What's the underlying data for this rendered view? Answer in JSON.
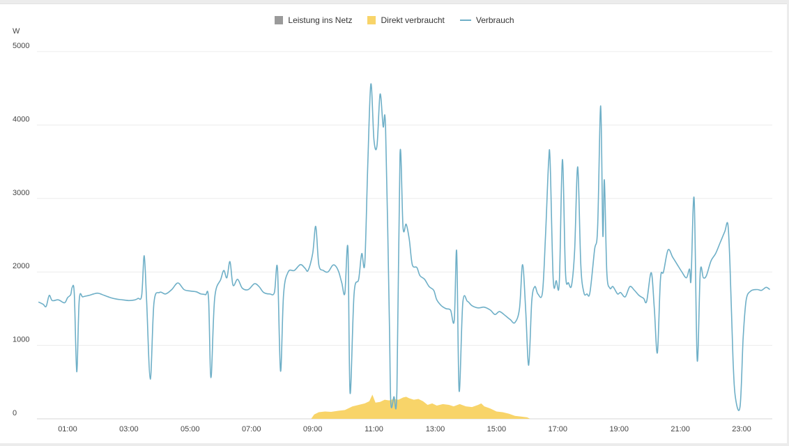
{
  "legend": [
    {
      "label": "Leistung ins Netz",
      "color": "#9a9a9a",
      "kind": "box"
    },
    {
      "label": "Direkt verbraucht",
      "color": "#f8d469",
      "kind": "box"
    },
    {
      "label": "Verbrauch",
      "color": "#6eafc7",
      "kind": "line"
    }
  ],
  "chart_data": {
    "type": "line",
    "ylabel": "W",
    "ylim": [
      0,
      5000
    ],
    "yticks": [
      0,
      1000,
      2000,
      3000,
      4000,
      5000
    ],
    "xlim": [
      0,
      24
    ],
    "xticks": [
      {
        "t": 1,
        "label": "01:00"
      },
      {
        "t": 3,
        "label": "03:00"
      },
      {
        "t": 5,
        "label": "05:00"
      },
      {
        "t": 7,
        "label": "07:00"
      },
      {
        "t": 9,
        "label": "09:00"
      },
      {
        "t": 11,
        "label": "11:00"
      },
      {
        "t": 13,
        "label": "13:00"
      },
      {
        "t": 15,
        "label": "15:00"
      },
      {
        "t": 17,
        "label": "17:00"
      },
      {
        "t": 19,
        "label": "19:00"
      },
      {
        "t": 21,
        "label": "21:00"
      },
      {
        "t": 23,
        "label": "23:00"
      }
    ],
    "grid": true,
    "legend_position": "top-center",
    "series": [
      {
        "name": "Verbrauch",
        "kind": "line",
        "color": "#6eafc7",
        "points": [
          [
            0.05,
            1590
          ],
          [
            0.2,
            1560
          ],
          [
            0.3,
            1530
          ],
          [
            0.4,
            1680
          ],
          [
            0.5,
            1610
          ],
          [
            0.7,
            1620
          ],
          [
            0.9,
            1580
          ],
          [
            1.0,
            1650
          ],
          [
            1.1,
            1690
          ],
          [
            1.15,
            1790
          ],
          [
            1.22,
            1700
          ],
          [
            1.3,
            640
          ],
          [
            1.38,
            1620
          ],
          [
            1.5,
            1660
          ],
          [
            1.7,
            1680
          ],
          [
            1.85,
            1700
          ],
          [
            2.0,
            1710
          ],
          [
            2.2,
            1680
          ],
          [
            2.4,
            1650
          ],
          [
            2.6,
            1630
          ],
          [
            2.8,
            1620
          ],
          [
            3.0,
            1610
          ],
          [
            3.2,
            1620
          ],
          [
            3.3,
            1640
          ],
          [
            3.42,
            1680
          ],
          [
            3.5,
            2220
          ],
          [
            3.58,
            1600
          ],
          [
            3.7,
            540
          ],
          [
            3.82,
            1580
          ],
          [
            4.0,
            1720
          ],
          [
            4.2,
            1700
          ],
          [
            4.4,
            1760
          ],
          [
            4.6,
            1850
          ],
          [
            4.8,
            1760
          ],
          [
            5.0,
            1740
          ],
          [
            5.2,
            1730
          ],
          [
            5.35,
            1700
          ],
          [
            5.5,
            1690
          ],
          [
            5.6,
            1640
          ],
          [
            5.68,
            560
          ],
          [
            5.8,
            1640
          ],
          [
            6.0,
            1900
          ],
          [
            6.1,
            2020
          ],
          [
            6.2,
            1920
          ],
          [
            6.3,
            2140
          ],
          [
            6.4,
            1820
          ],
          [
            6.55,
            1900
          ],
          [
            6.7,
            1780
          ],
          [
            6.9,
            1760
          ],
          [
            7.1,
            1840
          ],
          [
            7.25,
            1800
          ],
          [
            7.4,
            1720
          ],
          [
            7.6,
            1700
          ],
          [
            7.75,
            1720
          ],
          [
            7.85,
            2050
          ],
          [
            7.95,
            650
          ],
          [
            8.05,
            1700
          ],
          [
            8.2,
            2000
          ],
          [
            8.4,
            2020
          ],
          [
            8.6,
            2100
          ],
          [
            8.75,
            2050
          ],
          [
            8.85,
            2020
          ],
          [
            9.0,
            2250
          ],
          [
            9.1,
            2620
          ],
          [
            9.2,
            2100
          ],
          [
            9.35,
            2020
          ],
          [
            9.5,
            2000
          ],
          [
            9.65,
            2090
          ],
          [
            9.75,
            2080
          ],
          [
            9.85,
            2000
          ],
          [
            9.95,
            1850
          ],
          [
            10.05,
            1710
          ],
          [
            10.15,
            2320
          ],
          [
            10.22,
            350
          ],
          [
            10.35,
            1700
          ],
          [
            10.5,
            1900
          ],
          [
            10.6,
            2250
          ],
          [
            10.7,
            2120
          ],
          [
            10.8,
            3500
          ],
          [
            10.9,
            4560
          ],
          [
            11.0,
            3800
          ],
          [
            11.1,
            3720
          ],
          [
            11.2,
            4420
          ],
          [
            11.3,
            3980
          ],
          [
            11.38,
            3960
          ],
          [
            11.5,
            1400
          ],
          [
            11.55,
            220
          ],
          [
            11.65,
            300
          ],
          [
            11.75,
            400
          ],
          [
            11.85,
            3600
          ],
          [
            11.95,
            2600
          ],
          [
            12.05,
            2650
          ],
          [
            12.15,
            2450
          ],
          [
            12.25,
            2100
          ],
          [
            12.4,
            2060
          ],
          [
            12.5,
            1950
          ],
          [
            12.65,
            1900
          ],
          [
            12.8,
            1800
          ],
          [
            12.95,
            1750
          ],
          [
            13.05,
            1620
          ],
          [
            13.2,
            1540
          ],
          [
            13.35,
            1500
          ],
          [
            13.5,
            1480
          ],
          [
            13.62,
            1340
          ],
          [
            13.7,
            2280
          ],
          [
            13.78,
            380
          ],
          [
            13.9,
            1580
          ],
          [
            14.05,
            1600
          ],
          [
            14.2,
            1540
          ],
          [
            14.4,
            1510
          ],
          [
            14.6,
            1520
          ],
          [
            14.8,
            1480
          ],
          [
            14.95,
            1420
          ],
          [
            15.1,
            1460
          ],
          [
            15.3,
            1400
          ],
          [
            15.45,
            1350
          ],
          [
            15.6,
            1310
          ],
          [
            15.75,
            1500
          ],
          [
            15.85,
            2100
          ],
          [
            15.95,
            1500
          ],
          [
            16.05,
            730
          ],
          [
            16.15,
            1600
          ],
          [
            16.25,
            1800
          ],
          [
            16.35,
            1700
          ],
          [
            16.5,
            1720
          ],
          [
            16.6,
            2500
          ],
          [
            16.7,
            3500
          ],
          [
            16.75,
            3500
          ],
          [
            16.85,
            1900
          ],
          [
            16.95,
            1880
          ],
          [
            17.05,
            1870
          ],
          [
            17.15,
            3530
          ],
          [
            17.25,
            2000
          ],
          [
            17.35,
            1850
          ],
          [
            17.45,
            1820
          ],
          [
            17.55,
            2300
          ],
          [
            17.65,
            3430
          ],
          [
            17.75,
            2100
          ],
          [
            17.85,
            1720
          ],
          [
            17.95,
            1700
          ],
          [
            18.05,
            1720
          ],
          [
            18.2,
            2300
          ],
          [
            18.3,
            2600
          ],
          [
            18.4,
            4260
          ],
          [
            18.47,
            2500
          ],
          [
            18.52,
            3250
          ],
          [
            18.6,
            2000
          ],
          [
            18.7,
            1780
          ],
          [
            18.8,
            1800
          ],
          [
            18.95,
            1700
          ],
          [
            19.05,
            1720
          ],
          [
            19.2,
            1660
          ],
          [
            19.35,
            1800
          ],
          [
            19.5,
            1750
          ],
          [
            19.65,
            1680
          ],
          [
            19.8,
            1640
          ],
          [
            19.9,
            1600
          ],
          [
            20.05,
            1990
          ],
          [
            20.15,
            1500
          ],
          [
            20.25,
            900
          ],
          [
            20.35,
            1900
          ],
          [
            20.45,
            2000
          ],
          [
            20.6,
            2300
          ],
          [
            20.75,
            2200
          ],
          [
            20.9,
            2100
          ],
          [
            21.05,
            2000
          ],
          [
            21.2,
            1920
          ],
          [
            21.3,
            2040
          ],
          [
            21.35,
            1900
          ],
          [
            21.45,
            3000
          ],
          [
            21.55,
            800
          ],
          [
            21.65,
            2000
          ],
          [
            21.75,
            1920
          ],
          [
            21.85,
            1950
          ],
          [
            22.0,
            2150
          ],
          [
            22.15,
            2250
          ],
          [
            22.3,
            2400
          ],
          [
            22.45,
            2550
          ],
          [
            22.55,
            2650
          ],
          [
            22.62,
            2100
          ],
          [
            22.72,
            800
          ],
          [
            22.8,
            280
          ],
          [
            22.95,
            170
          ],
          [
            23.05,
            1100
          ],
          [
            23.15,
            1620
          ],
          [
            23.3,
            1740
          ],
          [
            23.5,
            1760
          ],
          [
            23.65,
            1750
          ],
          [
            23.8,
            1790
          ],
          [
            23.92,
            1760
          ]
        ]
      },
      {
        "name": "Direkt verbraucht",
        "kind": "area",
        "color": "#f8d469",
        "points": [
          [
            8.95,
            0
          ],
          [
            9.05,
            60
          ],
          [
            9.2,
            90
          ],
          [
            9.4,
            100
          ],
          [
            9.6,
            95
          ],
          [
            9.85,
            110
          ],
          [
            10.05,
            120
          ],
          [
            10.3,
            170
          ],
          [
            10.5,
            190
          ],
          [
            10.7,
            210
          ],
          [
            10.85,
            240
          ],
          [
            10.95,
            330
          ],
          [
            11.05,
            220
          ],
          [
            11.2,
            230
          ],
          [
            11.35,
            260
          ],
          [
            11.5,
            250
          ],
          [
            11.65,
            270
          ],
          [
            11.8,
            260
          ],
          [
            11.95,
            290
          ],
          [
            12.05,
            300
          ],
          [
            12.15,
            280
          ],
          [
            12.3,
            260
          ],
          [
            12.45,
            270
          ],
          [
            12.6,
            240
          ],
          [
            12.75,
            190
          ],
          [
            12.9,
            210
          ],
          [
            13.05,
            180
          ],
          [
            13.25,
            200
          ],
          [
            13.45,
            190
          ],
          [
            13.6,
            170
          ],
          [
            13.8,
            200
          ],
          [
            14.0,
            170
          ],
          [
            14.2,
            160
          ],
          [
            14.4,
            190
          ],
          [
            14.5,
            210
          ],
          [
            14.6,
            170
          ],
          [
            14.8,
            140
          ],
          [
            15.0,
            100
          ],
          [
            15.2,
            90
          ],
          [
            15.4,
            70
          ],
          [
            15.6,
            40
          ],
          [
            15.8,
            30
          ],
          [
            16.0,
            20
          ],
          [
            16.1,
            0
          ]
        ]
      },
      {
        "name": "Leistung ins Netz",
        "kind": "area",
        "color": "#9a9a9a",
        "points": []
      }
    ]
  }
}
